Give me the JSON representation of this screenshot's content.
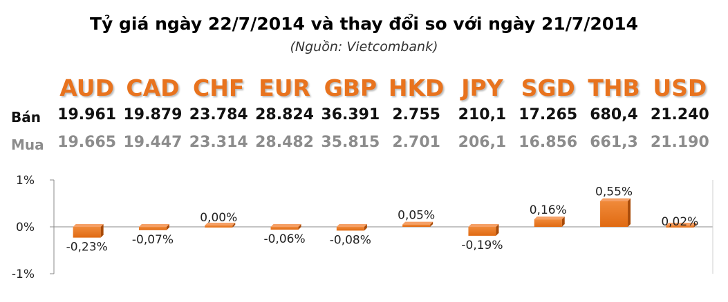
{
  "title": "Tỷ giá ngày 22/7/2014 và thay đổi so với ngày 21/7/2014",
  "subtitle": "(Nguồn: Vietcombank)",
  "row_labels": {
    "sell": "Bán",
    "buy": "Mua"
  },
  "colors": {
    "accent": "#e8731e",
    "bar": "#e06a12",
    "bar_dark": "#a84a08",
    "buy_text": "#8c8c8c"
  },
  "table": {
    "currencies": [
      "AUD",
      "CAD",
      "CHF",
      "EUR",
      "GBP",
      "HKD",
      "JPY",
      "SGD",
      "THB",
      "USD"
    ],
    "sell": [
      "19.961",
      "19.879",
      "23.784",
      "28.824",
      "36.391",
      "2.755",
      "210,1",
      "17.265",
      "680,4",
      "21.240"
    ],
    "buy": [
      "19.665",
      "19.447",
      "23.314",
      "28.482",
      "35.815",
      "2.701",
      "206,1",
      "16.856",
      "661,3",
      "21.190"
    ]
  },
  "chart_data": {
    "type": "bar",
    "categories": [
      "AUD",
      "CAD",
      "CHF",
      "EUR",
      "GBP",
      "HKD",
      "JPY",
      "SGD",
      "THB",
      "USD"
    ],
    "values": [
      -0.23,
      -0.07,
      0.0,
      -0.06,
      -0.08,
      0.05,
      -0.19,
      0.16,
      0.55,
      0.02
    ],
    "data_labels": [
      "-0,23%",
      "-0,07%",
      "0,00%",
      "-0,06%",
      "-0,08%",
      "0,05%",
      "-0,19%",
      "0,16%",
      "0,55%",
      "0,02%"
    ],
    "ytick_labels": [
      "1%",
      "0%",
      "-1%"
    ],
    "yticks": [
      1,
      0,
      -1
    ],
    "ylim": [
      -1,
      1
    ],
    "grid": false,
    "legend": "none"
  }
}
